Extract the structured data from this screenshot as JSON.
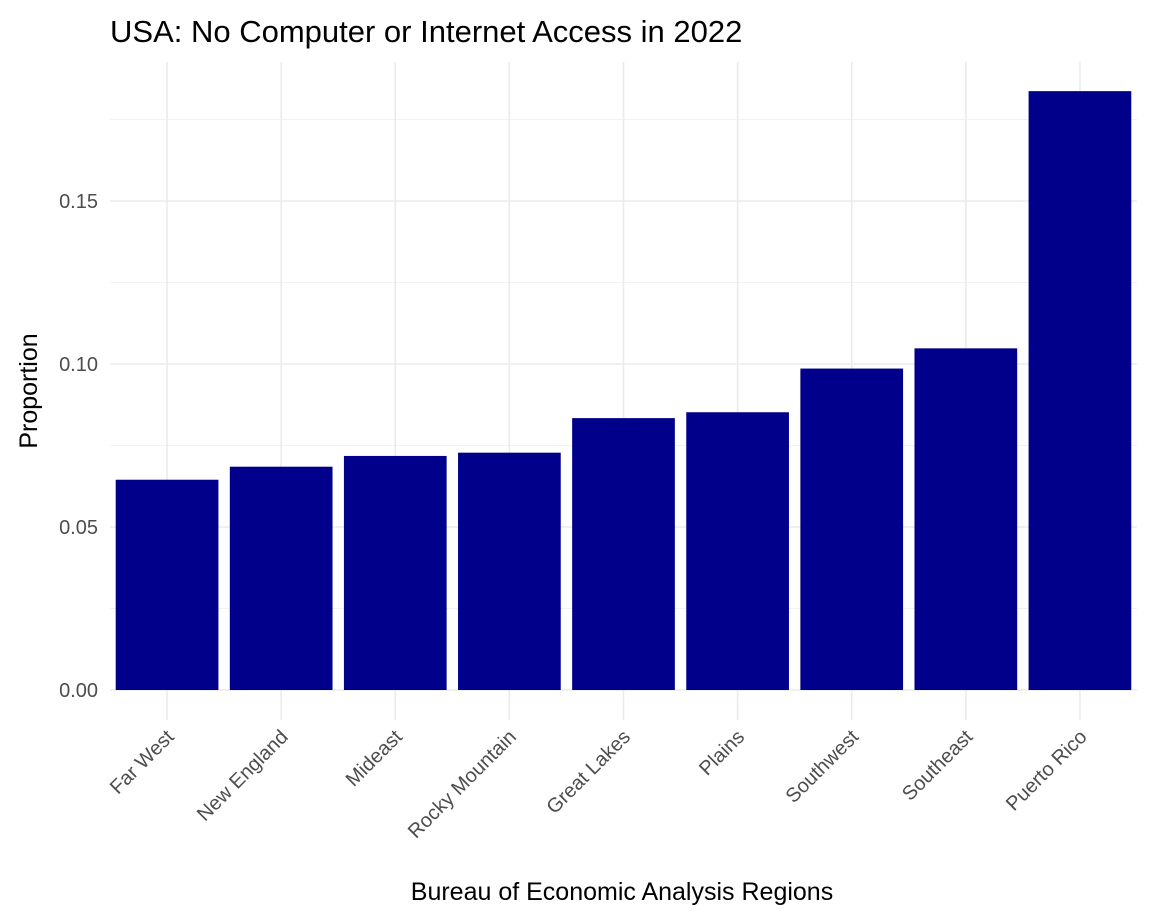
{
  "chart_data": {
    "type": "bar",
    "title": "USA: No Computer or Internet Access in 2022",
    "xlabel": "Bureau of Economic Analysis Regions",
    "ylabel": "Proportion",
    "categories": [
      "Far West",
      "New England",
      "Mideast",
      "Rocky Mountain",
      "Great Lakes",
      "Plains",
      "Southwest",
      "Southeast",
      "Puerto Rico"
    ],
    "values": [
      0.0645,
      0.0685,
      0.0718,
      0.0728,
      0.0834,
      0.0852,
      0.0986,
      0.1048,
      0.1837
    ],
    "ylim": [
      0,
      0.1837
    ],
    "yticks": [
      "0.00",
      "0.05",
      "0.10",
      "0.15"
    ],
    "ytick_values": [
      0,
      0.05,
      0.1,
      0.15
    ],
    "grid": true,
    "legend": "none",
    "bar_color": "#00008b"
  }
}
